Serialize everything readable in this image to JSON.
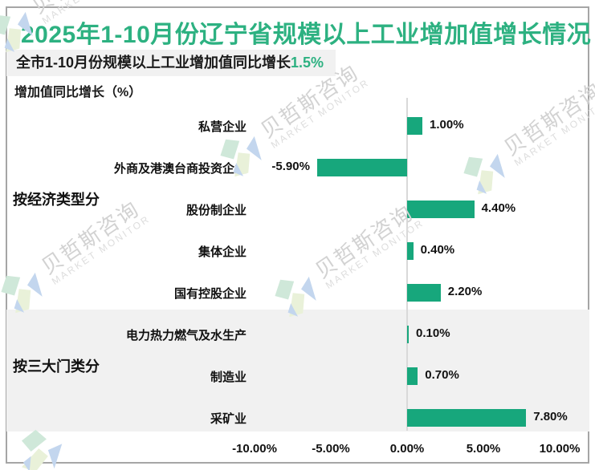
{
  "header": {
    "title": "2025年1-10月份辽宁省规模以上工业增加值增长情况",
    "subtitle_prefix": "全市1-10月份规模以上工业增加值同比增长",
    "subtitle_highlight": "1.5%"
  },
  "axis_title": "增加值同比增长（%）",
  "watermark": {
    "cn": "贝哲斯咨询",
    "en": "MARKET MONITOR"
  },
  "colors": {
    "accent_green": "#2db181",
    "bar_green": "#17a77c",
    "section_band_gray": "#f1f1f1",
    "zero_axis_gray": "#d9d9d9",
    "frame_gray": "#a6a6a6"
  },
  "chart_data": {
    "type": "bar",
    "orientation": "horizontal",
    "unit": "%",
    "categories": [
      "私营企业",
      "外商及港澳台商投资企业",
      "股份制企业",
      "集体企业",
      "国有控股企业",
      "电力热力燃气及水生产",
      "制造业",
      "采矿业"
    ],
    "values": [
      1.0,
      -5.9,
      4.4,
      0.4,
      2.2,
      0.1,
      0.7,
      7.8
    ],
    "value_labels": [
      "1.00%",
      "-5.90%",
      "4.40%",
      "0.40%",
      "2.20%",
      "0.10%",
      "0.70%",
      "7.80%"
    ],
    "groups": [
      {
        "label": "按经济类型分",
        "start": 0,
        "end": 4,
        "shaded": false
      },
      {
        "label": "按三大门类分",
        "start": 5,
        "end": 7,
        "shaded": true
      }
    ],
    "x_tick_labels": [
      "-10.00%",
      "-5.00%",
      "0.00%",
      "5.00%",
      "10.00%"
    ],
    "x_tick_values": [
      -10,
      -5,
      0,
      5,
      10
    ],
    "xlim": [
      -10,
      10
    ],
    "grid": false,
    "legend": false,
    "bar_color": "#17a77c",
    "title": "2025年1-10月份辽宁省规模以上工业增加值增长情况",
    "xlabel": "",
    "ylabel": "增加值同比增长（%）"
  }
}
